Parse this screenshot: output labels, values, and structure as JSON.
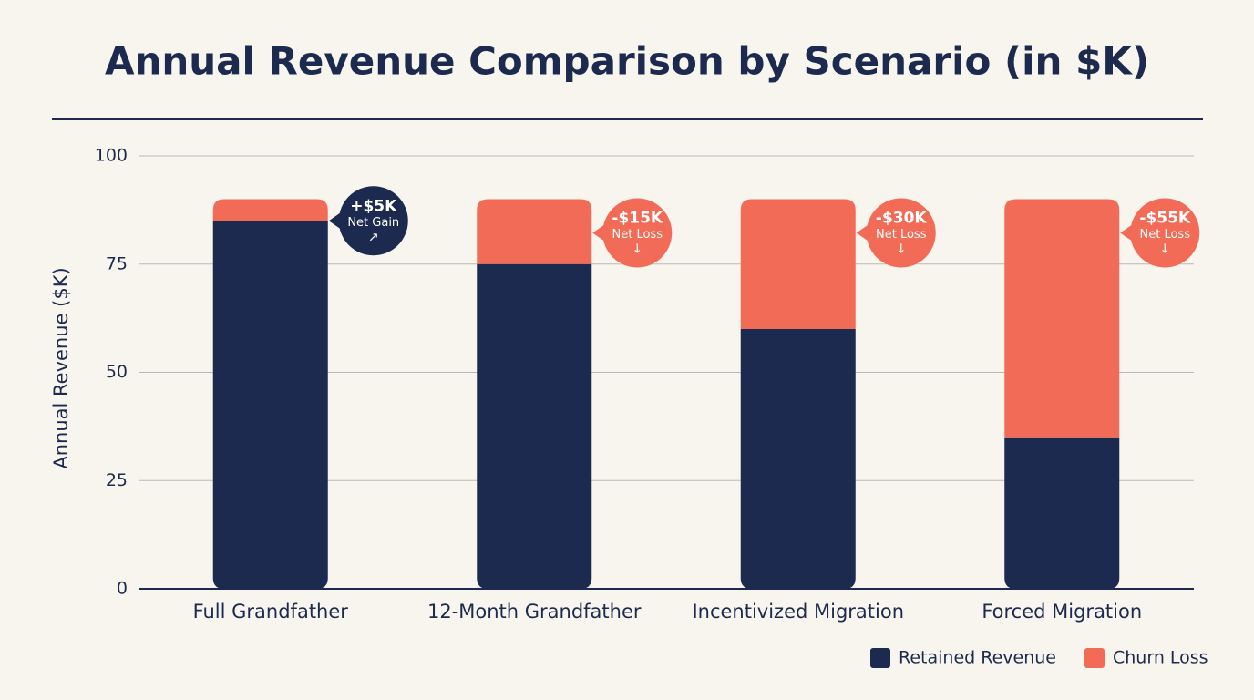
{
  "chart_data": {
    "type": "stacked-bar",
    "title": "Annual Revenue Comparison by Scenario (in $K)",
    "y_label": "Annual Revenue ($K)",
    "categories": [
      "Full Grandfather",
      "12-Month Grandfather",
      "Incentivized Migration",
      "Forced Migration"
    ],
    "series": [
      {
        "name": "Retained Revenue",
        "color": "#1b2a4e",
        "values": [
          85,
          75,
          60,
          35
        ]
      },
      {
        "name": "Churn Loss",
        "color": "#f26b56",
        "values": [
          5,
          15,
          30,
          55
        ]
      }
    ],
    "annotations": [
      {
        "value": "+$5K",
        "label": "Net Gain",
        "arrow": "↗",
        "color": "#1b2a4e"
      },
      {
        "value": "-$15K",
        "label": "Net Loss",
        "arrow": "↓",
        "color": "#f26b56"
      },
      {
        "value": "-$30K",
        "label": "Net Loss",
        "arrow": "↓",
        "color": "#f26b56"
      },
      {
        "value": "-$55K",
        "label": "Net Loss",
        "arrow": "↓",
        "color": "#f26b56"
      }
    ],
    "ylim": [
      0,
      100
    ],
    "yticks": [
      0,
      25,
      50,
      75,
      100
    ],
    "grid": true,
    "legend": "bottom-right"
  }
}
